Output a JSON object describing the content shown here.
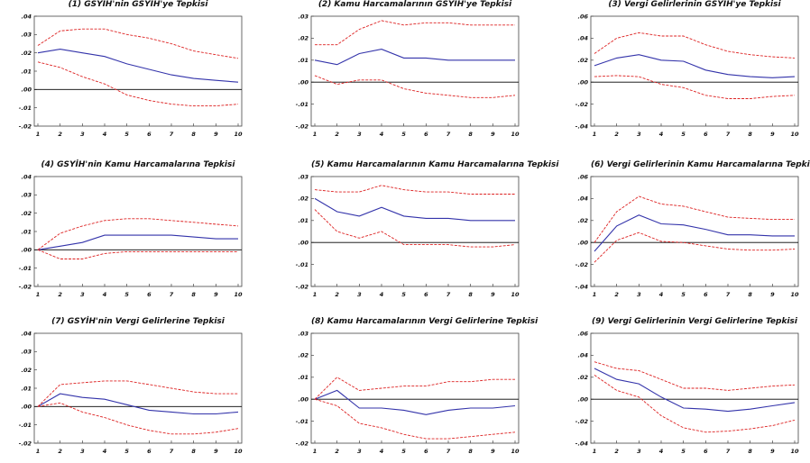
{
  "chart_data": [
    {
      "type": "line",
      "title": "(1) GSYİH'nin GSYİH'ye Tepkisi",
      "x": [
        1,
        2,
        3,
        4,
        5,
        6,
        7,
        8,
        9,
        10
      ],
      "ylim": [
        -0.02,
        0.04
      ],
      "yticks": [
        ".04",
        ".03",
        ".02",
        ".01",
        ".00",
        "-.01",
        "-.02"
      ],
      "ytick_values": [
        0.04,
        0.03,
        0.02,
        0.01,
        0.0,
        -0.01,
        -0.02
      ],
      "series": [
        {
          "role": "response",
          "values": [
            0.02,
            0.022,
            0.02,
            0.018,
            0.014,
            0.011,
            0.008,
            0.006,
            0.005,
            0.004
          ]
        },
        {
          "role": "upper",
          "values": [
            0.024,
            0.032,
            0.033,
            0.033,
            0.03,
            0.028,
            0.025,
            0.021,
            0.019,
            0.017
          ]
        },
        {
          "role": "lower",
          "values": [
            0.015,
            0.012,
            0.007,
            0.003,
            -0.003,
            -0.006,
            -0.008,
            -0.009,
            -0.009,
            -0.008
          ]
        }
      ]
    },
    {
      "type": "line",
      "title": "(4) GSYİH'nin Kamu Harcamalarına Tepkisi",
      "x": [
        1,
        2,
        3,
        4,
        5,
        6,
        7,
        8,
        9,
        10
      ],
      "ylim": [
        -0.02,
        0.04
      ],
      "yticks": [
        ".04",
        ".03",
        ".02",
        ".01",
        ".00",
        "-.01",
        "-.02"
      ],
      "ytick_values": [
        0.04,
        0.03,
        0.02,
        0.01,
        0.0,
        -0.01,
        -0.02
      ],
      "series": [
        {
          "role": "response",
          "values": [
            0.0,
            0.002,
            0.004,
            0.008,
            0.008,
            0.008,
            0.008,
            0.007,
            0.006,
            0.006
          ]
        },
        {
          "role": "upper",
          "values": [
            0.0,
            0.009,
            0.013,
            0.016,
            0.017,
            0.017,
            0.016,
            0.015,
            0.014,
            0.013
          ]
        },
        {
          "role": "lower",
          "values": [
            0.0,
            -0.005,
            -0.005,
            -0.002,
            -0.001,
            -0.001,
            -0.001,
            -0.001,
            -0.001,
            -0.001
          ]
        }
      ]
    },
    {
      "type": "line",
      "title": "(7) GSYİH'nin Vergi Gelirlerine Tepkisi",
      "x": [
        1,
        2,
        3,
        4,
        5,
        6,
        7,
        8,
        9,
        10
      ],
      "ylim": [
        -0.02,
        0.04
      ],
      "yticks": [
        ".04",
        ".03",
        ".02",
        ".01",
        ".00",
        "-.01",
        "-.02"
      ],
      "ytick_values": [
        0.04,
        0.03,
        0.02,
        0.01,
        0.0,
        -0.01,
        -0.02
      ],
      "series": [
        {
          "role": "response",
          "values": [
            0.0,
            0.007,
            0.005,
            0.004,
            0.001,
            -0.002,
            -0.003,
            -0.004,
            -0.004,
            -0.003
          ]
        },
        {
          "role": "upper",
          "values": [
            0.0,
            0.012,
            0.013,
            0.014,
            0.014,
            0.012,
            0.01,
            0.008,
            0.007,
            0.007
          ]
        },
        {
          "role": "lower",
          "values": [
            0.0,
            0.002,
            -0.003,
            -0.006,
            -0.01,
            -0.013,
            -0.015,
            -0.015,
            -0.014,
            -0.012
          ]
        }
      ]
    },
    {
      "type": "line",
      "title": "(2) Kamu Harcamalarının GSYİH'ye Tepkisi",
      "x": [
        1,
        2,
        3,
        4,
        5,
        6,
        7,
        8,
        9,
        10
      ],
      "ylim": [
        -0.02,
        0.03
      ],
      "yticks": [
        ".03",
        ".02",
        ".01",
        ".00",
        "-.01",
        "-.02"
      ],
      "ytick_values": [
        0.03,
        0.02,
        0.01,
        0.0,
        -0.01,
        -0.02
      ],
      "series": [
        {
          "role": "response",
          "values": [
            0.01,
            0.008,
            0.013,
            0.015,
            0.011,
            0.011,
            0.01,
            0.01,
            0.01,
            0.01
          ]
        },
        {
          "role": "upper",
          "values": [
            0.017,
            0.017,
            0.024,
            0.028,
            0.026,
            0.027,
            0.027,
            0.026,
            0.026,
            0.026
          ]
        },
        {
          "role": "lower",
          "values": [
            0.003,
            -0.001,
            0.001,
            0.001,
            -0.003,
            -0.005,
            -0.006,
            -0.007,
            -0.007,
            -0.006
          ]
        }
      ]
    },
    {
      "type": "line",
      "title": "(5) Kamu Harcamalarının Kamu Harcamalarına Tepkisi",
      "x": [
        1,
        2,
        3,
        4,
        5,
        6,
        7,
        8,
        9,
        10
      ],
      "ylim": [
        -0.02,
        0.03
      ],
      "yticks": [
        ".03",
        ".02",
        ".01",
        ".00",
        "-.01",
        "-.02"
      ],
      "ytick_values": [
        0.03,
        0.02,
        0.01,
        0.0,
        -0.01,
        -0.02
      ],
      "series": [
        {
          "role": "response",
          "values": [
            0.02,
            0.014,
            0.012,
            0.016,
            0.012,
            0.011,
            0.011,
            0.01,
            0.01,
            0.01
          ]
        },
        {
          "role": "upper",
          "values": [
            0.024,
            0.023,
            0.023,
            0.026,
            0.024,
            0.023,
            0.023,
            0.022,
            0.022,
            0.022
          ]
        },
        {
          "role": "lower",
          "values": [
            0.015,
            0.005,
            0.002,
            0.005,
            -0.001,
            -0.001,
            -0.001,
            -0.002,
            -0.002,
            -0.001
          ]
        }
      ]
    },
    {
      "type": "line",
      "title": "(8) Kamu Harcamalarının Vergi Gelirlerine Tepkisi",
      "x": [
        1,
        2,
        3,
        4,
        5,
        6,
        7,
        8,
        9,
        10
      ],
      "ylim": [
        -0.02,
        0.03
      ],
      "yticks": [
        ".03",
        ".02",
        ".01",
        ".00",
        "-.01",
        "-.02"
      ],
      "ytick_values": [
        0.03,
        0.02,
        0.01,
        0.0,
        -0.01,
        -0.02
      ],
      "series": [
        {
          "role": "response",
          "values": [
            0.0,
            0.004,
            -0.004,
            -0.004,
            -0.005,
            -0.007,
            -0.005,
            -0.004,
            -0.004,
            -0.003
          ]
        },
        {
          "role": "upper",
          "values": [
            0.0,
            0.01,
            0.004,
            0.005,
            0.006,
            0.006,
            0.008,
            0.008,
            0.009,
            0.009
          ]
        },
        {
          "role": "lower",
          "values": [
            0.0,
            -0.003,
            -0.011,
            -0.013,
            -0.016,
            -0.018,
            -0.018,
            -0.017,
            -0.016,
            -0.015
          ]
        }
      ]
    },
    {
      "type": "line",
      "title": "(3) Vergi Gelirlerinin GSYİH'ye Tepkisi",
      "x": [
        1,
        2,
        3,
        4,
        5,
        6,
        7,
        8,
        9,
        10
      ],
      "ylim": [
        -0.04,
        0.06
      ],
      "yticks": [
        ".06",
        ".04",
        ".02",
        ".00",
        "-.02",
        "-.04"
      ],
      "ytick_values": [
        0.06,
        0.04,
        0.02,
        0.0,
        -0.02,
        -0.04
      ],
      "series": [
        {
          "role": "response",
          "values": [
            0.015,
            0.022,
            0.025,
            0.02,
            0.019,
            0.011,
            0.007,
            0.005,
            0.004,
            0.005
          ]
        },
        {
          "role": "upper",
          "values": [
            0.026,
            0.04,
            0.045,
            0.042,
            0.042,
            0.034,
            0.028,
            0.025,
            0.023,
            0.022
          ]
        },
        {
          "role": "lower",
          "values": [
            0.005,
            0.006,
            0.005,
            -0.002,
            -0.005,
            -0.012,
            -0.015,
            -0.015,
            -0.013,
            -0.012
          ]
        }
      ]
    },
    {
      "type": "line",
      "title": "(6) Vergi Gelirlerinin Kamu Harcamalarına Tepkisi",
      "x": [
        1,
        2,
        3,
        4,
        5,
        6,
        7,
        8,
        9,
        10
      ],
      "ylim": [
        -0.04,
        0.06
      ],
      "yticks": [
        ".06",
        ".04",
        ".02",
        ".00",
        "-.02",
        "-.04"
      ],
      "ytick_values": [
        0.06,
        0.04,
        0.02,
        0.0,
        -0.02,
        -0.04
      ],
      "series": [
        {
          "role": "response",
          "values": [
            -0.008,
            0.015,
            0.025,
            0.017,
            0.016,
            0.012,
            0.007,
            0.007,
            0.006,
            0.006
          ]
        },
        {
          "role": "upper",
          "values": [
            0.0,
            0.028,
            0.042,
            0.035,
            0.033,
            0.028,
            0.023,
            0.022,
            0.021,
            0.021
          ]
        },
        {
          "role": "lower",
          "values": [
            -0.018,
            0.002,
            0.009,
            0.001,
            0.0,
            -0.003,
            -0.006,
            -0.007,
            -0.007,
            -0.006
          ]
        }
      ]
    },
    {
      "type": "line",
      "title": "(9) Vergi Gelirlerinin Vergi Gelirlerine Tepkisi",
      "x": [
        1,
        2,
        3,
        4,
        5,
        6,
        7,
        8,
        9,
        10
      ],
      "ylim": [
        -0.04,
        0.06
      ],
      "yticks": [
        ".06",
        ".04",
        ".02",
        ".00",
        "-.02",
        "-.04"
      ],
      "ytick_values": [
        0.06,
        0.04,
        0.02,
        0.0,
        -0.02,
        -0.04
      ],
      "series": [
        {
          "role": "response",
          "values": [
            0.028,
            0.018,
            0.014,
            0.002,
            -0.008,
            -0.009,
            -0.011,
            -0.009,
            -0.006,
            -0.003
          ]
        },
        {
          "role": "upper",
          "values": [
            0.034,
            0.028,
            0.026,
            0.018,
            0.01,
            0.01,
            0.008,
            0.01,
            0.012,
            0.013
          ]
        },
        {
          "role": "lower",
          "values": [
            0.022,
            0.008,
            0.002,
            -0.015,
            -0.026,
            -0.03,
            -0.029,
            -0.027,
            -0.024,
            -0.019
          ]
        }
      ]
    }
  ],
  "colors": {
    "response": "#3333aa",
    "band": "#dd2222",
    "zero": "#000000",
    "frame": "#444444"
  }
}
